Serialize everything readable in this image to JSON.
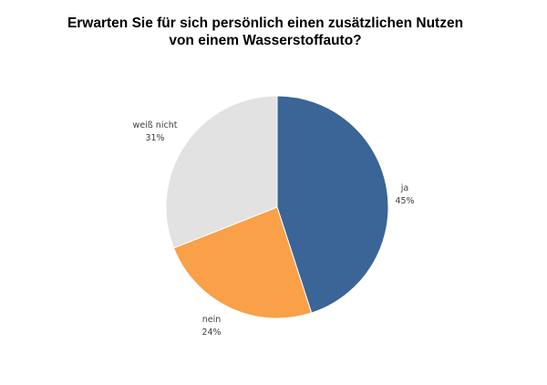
{
  "chart_data": {
    "type": "pie",
    "title_lines": [
      "Erwarten Sie für sich persönlich einen zusätzlichen Nutzen",
      "von einem Wasserstoffauto?"
    ],
    "slices": [
      {
        "label": "ja",
        "value": 45,
        "value_label": "45%",
        "color": "#3A6596"
      },
      {
        "label": "nein",
        "value": 24,
        "value_label": "24%",
        "color": "#F9A049"
      },
      {
        "label": "weiß nicht",
        "value": 31,
        "value_label": "31%",
        "color": "#E2E2E2"
      }
    ],
    "start": "top",
    "direction": "clockwise",
    "legend": "none"
  }
}
